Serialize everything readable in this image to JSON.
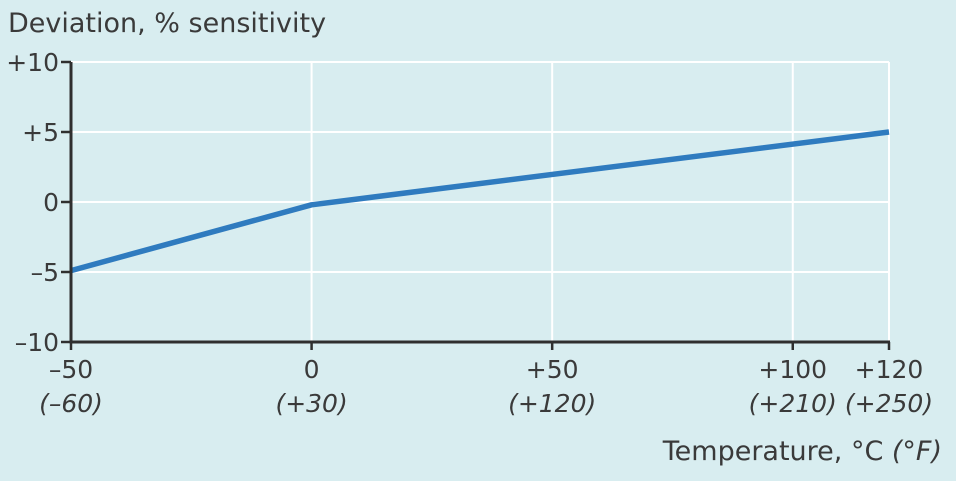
{
  "colors": {
    "background": "#d8edf0",
    "series": "#2f7bbf",
    "grid": "#ffffff",
    "axis": "#2f2f2f"
  },
  "chart_data": {
    "type": "line",
    "ylabel": "Deviation, % sensitivity",
    "xlabel_main": "Temperature, °C ",
    "xlabel_alt": "(°F)",
    "xlim": [
      -50,
      120
    ],
    "ylim": [
      -10,
      10
    ],
    "grid": true,
    "x_ticks": [
      {
        "value": -50,
        "label": "–50",
        "sub": "(–60)"
      },
      {
        "value": 0,
        "label": "0",
        "sub": "(+30)"
      },
      {
        "value": 50,
        "label": "+50",
        "sub": "(+120)"
      },
      {
        "value": 100,
        "label": "+100",
        "sub": "(+210)"
      },
      {
        "value": 120,
        "label": "+120",
        "sub": "(+250)"
      }
    ],
    "y_ticks": [
      {
        "value": 10,
        "label": "+10"
      },
      {
        "value": 5,
        "label": "+5"
      },
      {
        "value": 0,
        "label": "0"
      },
      {
        "value": -5,
        "label": "–5"
      },
      {
        "value": -10,
        "label": "–10"
      }
    ],
    "series": [
      {
        "x": [
          -50,
          0,
          120
        ],
        "y": [
          -4.9,
          -0.2,
          5.0
        ]
      }
    ]
  }
}
